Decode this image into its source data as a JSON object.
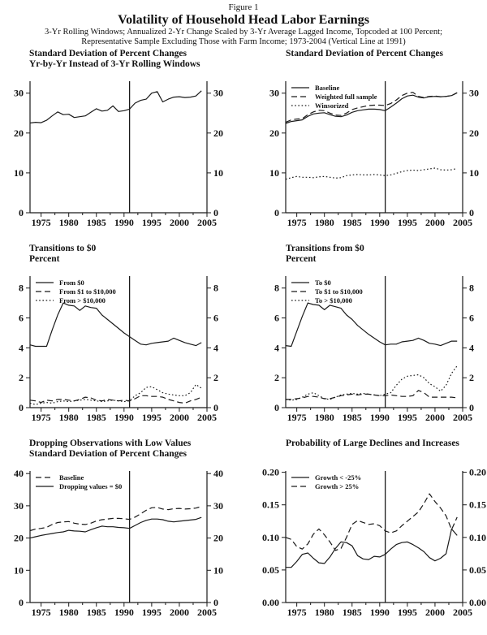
{
  "header": {
    "figure_label": "Figure 1",
    "title": "Volatility of Household Head Labor Earnings",
    "subtitle_line1": "3-Yr Rolling Windows; Annualized 2-Yr Change Scaled by 3-Yr Average Lagged Income, Topcoded at 100 Percent;",
    "subtitle_line2": "Representative Sample Excluding Those with Farm Income; 1973-2004 (Vertical Line at 1991)"
  },
  "line_color": "#1a1a1a",
  "chart_data": [
    {
      "type": "line",
      "title_lines": [
        "Standard Deviation of Percent Changes",
        "Yr-by-Yr Instead of 3-Yr Rolling Windows"
      ],
      "x_start": 1973,
      "xlim": [
        1973,
        2005
      ],
      "xtick_values": [
        1975,
        1980,
        1985,
        1990,
        1995,
        2000,
        2005
      ],
      "ylim": [
        0,
        33
      ],
      "ytick_values": [
        0,
        10,
        20,
        30
      ],
      "ytick_labels": [
        "0",
        "10",
        "20",
        "30"
      ],
      "vline_year": 1991,
      "legend": [],
      "series": [
        {
          "name": "Yr-by-Yr standard deviation",
          "style": "solid",
          "values": [
            22.5,
            22.7,
            22.6,
            23.2,
            24.3,
            25.3,
            24.6,
            24.7,
            23.9,
            24.1,
            24.3,
            25.2,
            26.1,
            25.5,
            25.7,
            26.8,
            25.4,
            25.6,
            26.0,
            27.5,
            28.2,
            28.5,
            30.0,
            30.4,
            27.8,
            28.5,
            29.0,
            29.1,
            28.9,
            29.0,
            29.3,
            30.6
          ]
        }
      ]
    },
    {
      "type": "line",
      "title_lines": [
        "Standard Deviation of Percent Changes"
      ],
      "x_start": 1973,
      "xlim": [
        1973,
        2005
      ],
      "xtick_values": [
        1975,
        1980,
        1985,
        1990,
        1995,
        2000,
        2005
      ],
      "ylim": [
        0,
        33
      ],
      "ytick_values": [
        0,
        10,
        20,
        30
      ],
      "ytick_labels": [
        "0",
        "10",
        "20",
        "30"
      ],
      "vline_year": 1991,
      "legend": [
        {
          "label": "Baseline",
          "style": "solid"
        },
        {
          "label": "Weighted full sample",
          "style": "dash"
        },
        {
          "label": "Winsorized",
          "style": "dot"
        }
      ],
      "series": [
        {
          "name": "Baseline",
          "style": "solid",
          "values": [
            22.4,
            22.9,
            23.1,
            23.3,
            24.2,
            24.8,
            25.0,
            25.1,
            24.6,
            24.2,
            24.1,
            24.5,
            25.2,
            25.6,
            25.8,
            26.0,
            26.0,
            25.9,
            25.6,
            26.5,
            27.5,
            28.6,
            29.3,
            29.5,
            29.0,
            28.8,
            29.1,
            29.2,
            29.1,
            29.2,
            29.4,
            30.1
          ]
        },
        {
          "name": "Weighted full sample",
          "style": "dash",
          "values": [
            22.7,
            23.3,
            23.5,
            23.6,
            24.6,
            25.3,
            25.7,
            25.6,
            25.0,
            24.5,
            24.4,
            25.0,
            25.9,
            26.3,
            26.6,
            26.9,
            27.0,
            27.0,
            26.9,
            27.4,
            28.3,
            29.4,
            30.0,
            30.2,
            29.2,
            28.9,
            29.2,
            29.3,
            29.1,
            29.2,
            29.4,
            30.1
          ]
        },
        {
          "name": "Winsorized",
          "style": "dot",
          "values": [
            8.4,
            8.8,
            9.1,
            8.9,
            8.9,
            8.8,
            9.0,
            9.1,
            8.9,
            8.7,
            8.8,
            9.3,
            9.5,
            9.6,
            9.5,
            9.5,
            9.6,
            9.5,
            9.3,
            9.5,
            9.9,
            10.3,
            10.6,
            10.7,
            10.6,
            10.8,
            11.0,
            11.2,
            10.8,
            10.7,
            10.8,
            11.1
          ]
        }
      ]
    },
    {
      "type": "line",
      "title_lines": [
        "Transitions to $0",
        "Percent"
      ],
      "x_start": 1973,
      "xlim": [
        1973,
        2005
      ],
      "xtick_values": [
        1975,
        1980,
        1985,
        1990,
        1995,
        2000,
        2005
      ],
      "ylim": [
        0,
        8.8
      ],
      "ytick_values": [
        0,
        2,
        4,
        6,
        8
      ],
      "ytick_labels": [
        "0",
        "2",
        "4",
        "6",
        "8"
      ],
      "vline_year": 1991,
      "legend": [
        {
          "label": "From $0",
          "style": "solid"
        },
        {
          "label": "From $1 to $10,000",
          "style": "dash"
        },
        {
          "label": "From > $10,000",
          "style": "dot"
        }
      ],
      "series": [
        {
          "name": "From $0",
          "style": "solid",
          "values": [
            4.2,
            4.1,
            4.1,
            4.1,
            5.2,
            6.2,
            7.0,
            6.85,
            6.8,
            6.5,
            6.8,
            6.7,
            6.65,
            6.2,
            5.9,
            5.6,
            5.3,
            5.0,
            4.75,
            4.5,
            4.25,
            4.2,
            4.3,
            4.35,
            4.4,
            4.45,
            4.65,
            4.5,
            4.35,
            4.25,
            4.15,
            4.35
          ]
        },
        {
          "name": "From $1 to $10,000",
          "style": "dash",
          "values": [
            0.5,
            0.45,
            0.35,
            0.5,
            0.45,
            0.55,
            0.55,
            0.5,
            0.45,
            0.55,
            0.7,
            0.65,
            0.5,
            0.45,
            0.55,
            0.5,
            0.45,
            0.5,
            0.45,
            0.6,
            0.8,
            0.8,
            0.75,
            0.75,
            0.7,
            0.55,
            0.45,
            0.35,
            0.3,
            0.45,
            0.55,
            0.7
          ]
        },
        {
          "name": "From > $10,000",
          "style": "dot",
          "values": [
            0.3,
            0.2,
            0.3,
            0.35,
            0.3,
            0.4,
            0.45,
            0.4,
            0.45,
            0.5,
            0.55,
            0.5,
            0.45,
            0.4,
            0.45,
            0.5,
            0.45,
            0.4,
            0.45,
            0.8,
            1.0,
            1.35,
            1.4,
            1.2,
            1.0,
            0.9,
            0.85,
            0.8,
            0.8,
            1.0,
            1.55,
            1.3
          ]
        }
      ]
    },
    {
      "type": "line",
      "title_lines": [
        "Transitions from $0",
        "Percent"
      ],
      "x_start": 1973,
      "xlim": [
        1973,
        2005
      ],
      "xtick_values": [
        1975,
        1980,
        1985,
        1990,
        1995,
        2000,
        2005
      ],
      "ylim": [
        0,
        8.8
      ],
      "ytick_values": [
        0,
        2,
        4,
        6,
        8
      ],
      "ytick_labels": [
        "0",
        "2",
        "4",
        "6",
        "8"
      ],
      "vline_year": 1991,
      "legend": [
        {
          "label": "To $0",
          "style": "solid"
        },
        {
          "label": "To $1 to $10,000",
          "style": "dash"
        },
        {
          "label": "To > $10,000",
          "style": "dot"
        }
      ],
      "series": [
        {
          "name": "To $0",
          "style": "solid",
          "values": [
            4.15,
            4.1,
            5.1,
            6.1,
            7.0,
            6.9,
            6.85,
            6.55,
            6.85,
            6.75,
            6.65,
            6.2,
            5.9,
            5.5,
            5.2,
            4.9,
            4.65,
            4.4,
            4.2,
            4.25,
            4.25,
            4.4,
            4.45,
            4.5,
            4.65,
            4.5,
            4.3,
            4.25,
            4.15,
            4.3,
            4.45,
            4.45
          ]
        },
        {
          "name": "To $1 to $10,000",
          "style": "dash",
          "values": [
            0.55,
            0.55,
            0.6,
            0.65,
            0.75,
            0.75,
            0.7,
            0.6,
            0.6,
            0.7,
            0.8,
            0.85,
            0.9,
            0.85,
            0.9,
            0.9,
            0.85,
            0.8,
            0.8,
            0.85,
            0.8,
            0.75,
            0.75,
            0.8,
            1.15,
            1.0,
            0.7,
            0.7,
            0.7,
            0.7,
            0.7,
            0.65
          ]
        },
        {
          "name": "To > $10,000",
          "style": "dot",
          "values": [
            0.55,
            0.5,
            0.55,
            0.7,
            0.9,
            1.0,
            0.8,
            0.6,
            0.55,
            0.7,
            0.85,
            0.9,
            0.95,
            0.9,
            0.95,
            0.9,
            0.85,
            0.8,
            0.9,
            1.0,
            1.5,
            1.9,
            2.1,
            2.15,
            2.2,
            2.0,
            1.6,
            1.4,
            1.1,
            1.5,
            2.3,
            2.8
          ]
        }
      ]
    },
    {
      "type": "line",
      "title_lines": [
        "Dropping Observations with Low Values",
        "Standard Deviation of Percent Changes"
      ],
      "x_start": 1973,
      "xlim": [
        1973,
        2005
      ],
      "xtick_values": [
        1975,
        1980,
        1985,
        1990,
        1995,
        2000,
        2005
      ],
      "ylim": [
        0,
        40.8
      ],
      "ytick_values": [
        0,
        10,
        20,
        30,
        40
      ],
      "ytick_labels": [
        "0",
        "10",
        "20",
        "30",
        "40"
      ],
      "vline_year": 1991,
      "legend": [
        {
          "label": "Baseline",
          "style": "dash"
        },
        {
          "label": "Dropping values = $0",
          "style": "solid"
        }
      ],
      "series": [
        {
          "name": "Baseline",
          "style": "dash",
          "values": [
            22.3,
            22.8,
            23.0,
            23.3,
            24.2,
            24.8,
            25.0,
            25.1,
            24.6,
            24.3,
            24.2,
            24.6,
            25.3,
            25.7,
            25.9,
            26.1,
            26.1,
            26.0,
            25.8,
            26.5,
            27.5,
            28.6,
            29.4,
            29.5,
            29.0,
            28.8,
            29.1,
            29.2,
            29.0,
            29.1,
            29.3,
            29.8
          ]
        },
        {
          "name": "Dropping values = $0",
          "style": "solid",
          "values": [
            20.0,
            20.4,
            20.8,
            21.1,
            21.4,
            21.7,
            21.9,
            22.4,
            22.2,
            22.1,
            21.9,
            22.6,
            23.2,
            23.7,
            23.5,
            23.5,
            23.3,
            23.2,
            23.0,
            23.9,
            24.8,
            25.5,
            25.9,
            25.9,
            25.7,
            25.2,
            25.0,
            25.2,
            25.4,
            25.6,
            25.8,
            26.4
          ]
        }
      ]
    },
    {
      "type": "line",
      "title_lines": [
        "Probability of Large Declines and Increases"
      ],
      "x_start": 1973,
      "xlim": [
        1973,
        2005
      ],
      "xtick_values": [
        1975,
        1980,
        1985,
        1990,
        1995,
        2000,
        2005
      ],
      "ylim": [
        0,
        0.202
      ],
      "ytick_values": [
        0,
        0.05,
        0.1,
        0.15,
        0.2
      ],
      "ytick_labels": [
        "0.00",
        "0.05",
        "0.10",
        "0.15",
        "0.20"
      ],
      "vline_year": 1991,
      "legend": [
        {
          "label": "Growth < -25%",
          "style": "solid"
        },
        {
          "label": "Growth > 25%",
          "style": "dash"
        }
      ],
      "series": [
        {
          "name": "Growth < -25%",
          "style": "solid",
          "values": [
            0.054,
            0.054,
            0.063,
            0.074,
            0.076,
            0.068,
            0.061,
            0.06,
            0.07,
            0.083,
            0.093,
            0.092,
            0.087,
            0.072,
            0.067,
            0.066,
            0.071,
            0.07,
            0.074,
            0.082,
            0.089,
            0.092,
            0.093,
            0.089,
            0.084,
            0.078,
            0.069,
            0.064,
            0.068,
            0.075,
            0.113,
            0.103
          ]
        },
        {
          "name": "Growth > 25%",
          "style": "dash",
          "values": [
            0.1,
            0.097,
            0.086,
            0.082,
            0.09,
            0.105,
            0.113,
            0.104,
            0.093,
            0.08,
            0.083,
            0.1,
            0.12,
            0.126,
            0.123,
            0.12,
            0.121,
            0.118,
            0.11,
            0.107,
            0.11,
            0.118,
            0.125,
            0.132,
            0.139,
            0.152,
            0.167,
            0.155,
            0.145,
            0.133,
            0.112,
            0.131
          ]
        }
      ]
    }
  ]
}
